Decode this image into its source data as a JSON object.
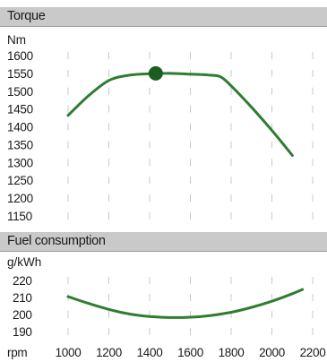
{
  "sections": {
    "torque_title": "Torque",
    "fuel_title": "Fuel consumption"
  },
  "colors": {
    "curve": "#2e7d32",
    "marker": "#1b5e20",
    "header_bg": "#c9c9c9",
    "grid": "#c8c8c8"
  },
  "chart_data": [
    {
      "type": "line",
      "title": "Torque",
      "ylabel": "Nm",
      "xlabel": "rpm",
      "ylim": [
        1150,
        1600
      ],
      "xlim": [
        1000,
        2200
      ],
      "yticks": [
        1600,
        1550,
        1500,
        1450,
        1400,
        1350,
        1300,
        1250,
        1200,
        1150
      ],
      "series": [
        {
          "x": [
            1000,
            1100,
            1200,
            1300,
            1400,
            1500,
            1600,
            1700,
            1750,
            1800,
            1900,
            2000,
            2100
          ],
          "y": [
            1432,
            1487,
            1530,
            1545,
            1549,
            1550,
            1548,
            1545,
            1540,
            1515,
            1455,
            1390,
            1320
          ]
        }
      ],
      "marker": {
        "x": 1430,
        "y": 1550
      }
    },
    {
      "type": "line",
      "title": "Fuel consumption",
      "ylabel": "g/kWh",
      "xlabel": "rpm",
      "ylim": [
        190,
        220
      ],
      "xlim": [
        1000,
        2200
      ],
      "yticks": [
        220,
        210,
        200,
        190
      ],
      "xticks": [
        1000,
        1200,
        1400,
        1600,
        1800,
        2000,
        2200
      ],
      "series": [
        {
          "x": [
            1000,
            1100,
            1200,
            1300,
            1400,
            1500,
            1600,
            1700,
            1800,
            1900,
            2000,
            2100,
            2150
          ],
          "y": [
            210.5,
            206.5,
            203,
            200.3,
            198.8,
            198.2,
            198.4,
            199.4,
            201.3,
            204.2,
            207.8,
            212.2,
            214.7
          ]
        }
      ]
    }
  ]
}
